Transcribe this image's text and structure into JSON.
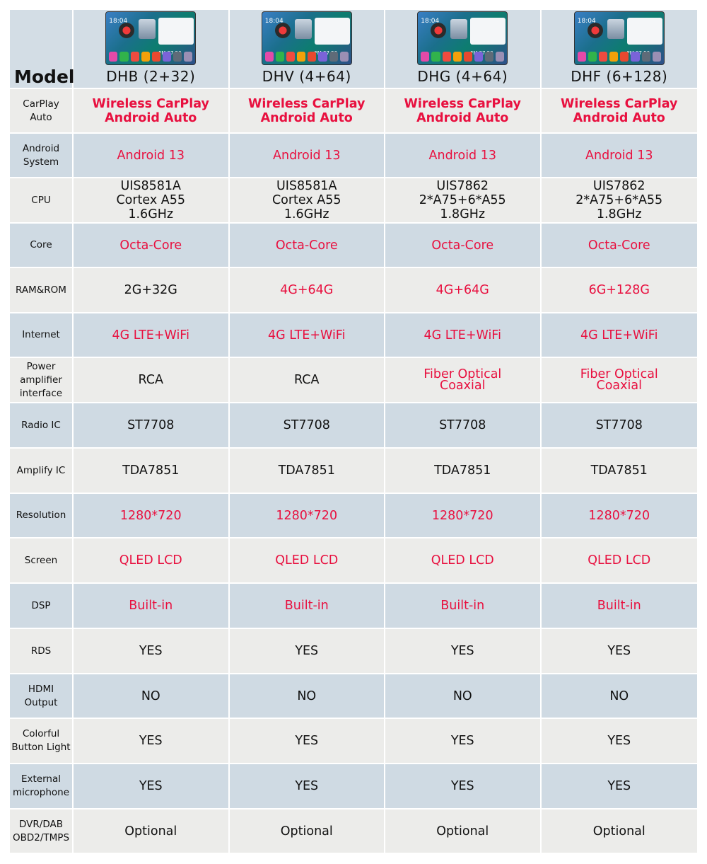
{
  "header": {
    "model_label": "Model",
    "screen_clock": "18:04",
    "screen_freq": "FM 87.50",
    "models": [
      "DHB (2+32)",
      "DHV (4+64)",
      "DHG (4+64)",
      "DHF (6+128)"
    ]
  },
  "colors": {
    "accent_red": "#e8103f",
    "row_blue": "#cfdae3",
    "row_gray": "#ececea"
  },
  "rows": [
    {
      "label": "CarPlay\nAuto",
      "values": [
        "Wireless CarPlay\nAndroid Auto",
        "Wireless CarPlay\nAndroid Auto",
        "Wireless CarPlay\nAndroid Auto",
        "Wireless CarPlay\nAndroid Auto"
      ]
    },
    {
      "label": "Android\nSystem",
      "values": [
        "Android 13",
        "Android 13",
        "Android 13",
        "Android 13"
      ]
    },
    {
      "label": "CPU",
      "values": [
        "UIS8581A\nCortex A55\n1.6GHz",
        "UIS8581A\nCortex A55\n1.6GHz",
        "UIS7862\n2*A75+6*A55\n1.8GHz",
        "UIS7862\n2*A75+6*A55\n1.8GHz"
      ]
    },
    {
      "label": "Core",
      "values": [
        "Octa-Core",
        "Octa-Core",
        "Octa-Core",
        "Octa-Core"
      ]
    },
    {
      "label": "RAM&ROM",
      "values": [
        "2G+32G",
        "4G+64G",
        "4G+64G",
        "6G+128G"
      ]
    },
    {
      "label": "Internet",
      "values": [
        "4G LTE+WiFi",
        "4G LTE+WiFi",
        "4G LTE+WiFi",
        "4G LTE+WiFi"
      ]
    },
    {
      "label": "Power\namplifier\ninterface",
      "values": [
        "RCA",
        "RCA",
        "Fiber Optical\nCoaxial",
        "Fiber Optical\nCoaxial"
      ]
    },
    {
      "label": "Radio IC",
      "values": [
        "ST7708",
        "ST7708",
        "ST7708",
        "ST7708"
      ]
    },
    {
      "label": "Amplify IC",
      "values": [
        "TDA7851",
        "TDA7851",
        "TDA7851",
        "TDA7851"
      ]
    },
    {
      "label": "Resolution",
      "values": [
        "1280*720",
        "1280*720",
        "1280*720",
        "1280*720"
      ]
    },
    {
      "label": "Screen",
      "values": [
        "QLED LCD",
        "QLED LCD",
        "QLED LCD",
        "QLED LCD"
      ]
    },
    {
      "label": "DSP",
      "values": [
        "Built-in",
        "Built-in",
        "Built-in",
        "Built-in"
      ]
    },
    {
      "label": "RDS",
      "values": [
        "YES",
        "YES",
        "YES",
        "YES"
      ]
    },
    {
      "label": "HDMI\nOutput",
      "values": [
        "NO",
        "NO",
        "NO",
        "NO"
      ]
    },
    {
      "label": "Colorful\nButton Light",
      "values": [
        "YES",
        "YES",
        "YES",
        "YES"
      ]
    },
    {
      "label": "External\nmicrophone",
      "values": [
        "YES",
        "YES",
        "YES",
        "YES"
      ]
    },
    {
      "label": "DVR/DAB\nOBD2/TMPS",
      "values": [
        "Optional",
        "Optional",
        "Optional",
        "Optional"
      ]
    }
  ]
}
